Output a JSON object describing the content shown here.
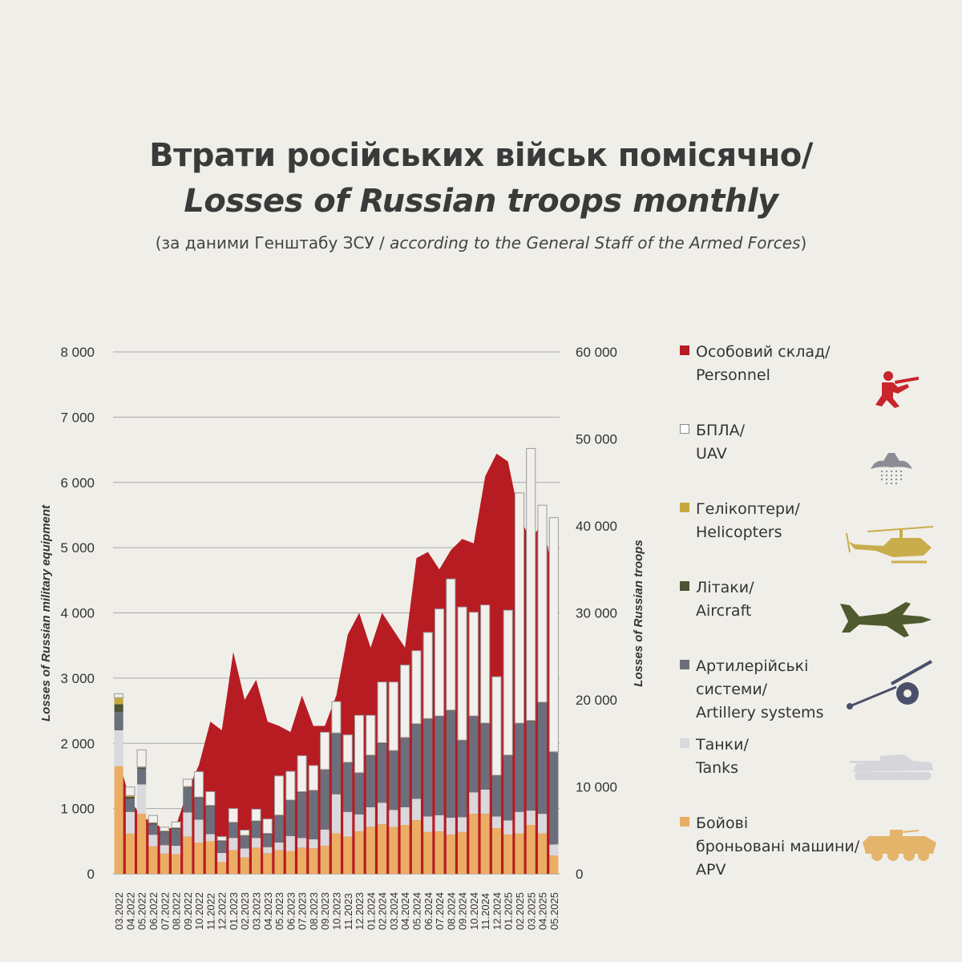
{
  "title": {
    "ua": "Втрати російських військ помісячно/",
    "en": "Losses of Russian troops monthly",
    "subtitle_ua": "(за даними Генштабу ЗСУ / ",
    "subtitle_en": "according to the General Staff of the Armed Forces",
    "subtitle_close": ")"
  },
  "colors": {
    "personnel": "#b71c23",
    "uav_fill": "#f2f0ec",
    "uav_stroke": "#9a9a9a",
    "helicopters": "#c3a93f",
    "aircraft": "#4c5433",
    "artillery": "#6b6f7c",
    "tanks": "#d9d8dc",
    "apv": "#eaad63",
    "grid": "#a8a8a8",
    "background": "#f0eee9"
  },
  "legend": [
    {
      "key": "personnel",
      "label_ua": "Особовий склад/",
      "label_en": "Personnel",
      "icon": "soldier-icon"
    },
    {
      "key": "uav",
      "label_ua": "БПЛА/",
      "label_en": "UAV",
      "icon": "drone-icon"
    },
    {
      "key": "helicopters",
      "label_ua": "Гелікоптери/",
      "label_en": "Helicopters",
      "icon": "helicopter-icon"
    },
    {
      "key": "aircraft",
      "label_ua": "Літаки/",
      "label_en": "Aircraft",
      "icon": "jet-icon"
    },
    {
      "key": "artillery",
      "label_ua": "Артилерійські",
      "label_ua2": "системи/",
      "label_en": "Artillery systems",
      "icon": "artillery-icon"
    },
    {
      "key": "tanks",
      "label_ua": "Танки/",
      "label_en": "Tanks",
      "icon": "tank-icon"
    },
    {
      "key": "apv",
      "label_ua": "Бойові",
      "label_ua2": "броньовані машини/",
      "label_en": "APV",
      "icon": "apc-icon"
    }
  ],
  "chart_data": {
    "type": "bar",
    "stacked": true,
    "ylabel_left": "Losses of Russian military equipment",
    "ylabel_right": "Losses of Russian troops",
    "ylim_left": [
      0,
      8000
    ],
    "ylim_right": [
      0,
      60000
    ],
    "yticks_left": [
      "0",
      "1 000",
      "2 000",
      "3 000",
      "4 000",
      "5 000",
      "6 000",
      "7 000",
      "8 000"
    ],
    "yticks_right": [
      "0",
      "10 000",
      "20 000",
      "30 000",
      "40 000",
      "50 000",
      "60 000"
    ],
    "grid": true,
    "legend_position": "right",
    "categories": [
      "03.2022",
      "04.2022",
      "05.2022",
      "06.2022",
      "07.2022",
      "08.2022",
      "09.2022",
      "10.2022",
      "11.2022",
      "12.2022",
      "01.2023",
      "02.2023",
      "03.2023",
      "04.2023",
      "05.2023",
      "06.2023",
      "07.2023",
      "08.2023",
      "09.2023",
      "10.2023",
      "11.2023",
      "12.2023",
      "01.2024",
      "02.2024",
      "03.2024",
      "04.2024",
      "05.2024",
      "06.2024",
      "07.2024",
      "08.2024",
      "09.2024",
      "10.2024",
      "11.2024",
      "12.2024",
      "01.2025",
      "02.2025",
      "03.2025",
      "04.2025",
      "05.2025"
    ],
    "series": [
      {
        "name": "Бойові броньовані машини/APV",
        "key": "apv",
        "axis": "left",
        "values": [
          1650,
          620,
          920,
          420,
          310,
          300,
          570,
          480,
          500,
          180,
          360,
          250,
          400,
          310,
          360,
          350,
          400,
          390,
          430,
          620,
          570,
          650,
          720,
          760,
          720,
          750,
          820,
          640,
          650,
          600,
          640,
          920,
          920,
          700,
          600,
          620,
          750,
          620,
          280
        ]
      },
      {
        "name": "Танки/Tanks",
        "key": "tanks",
        "axis": "left",
        "values": [
          550,
          330,
          450,
          180,
          130,
          130,
          370,
          350,
          110,
          140,
          190,
          140,
          150,
          100,
          120,
          230,
          150,
          140,
          250,
          600,
          380,
          260,
          300,
          330,
          260,
          270,
          330,
          240,
          250,
          260,
          230,
          330,
          370,
          180,
          220,
          330,
          220,
          300,
          170
        ]
      },
      {
        "name": "Артилерійські системи/Artillery systems",
        "key": "artillery",
        "axis": "left",
        "values": [
          280,
          200,
          240,
          160,
          200,
          260,
          380,
          330,
          430,
          180,
          230,
          190,
          250,
          200,
          410,
          540,
          700,
          740,
          910,
          930,
          750,
          630,
          790,
          910,
          900,
          1060,
          1140,
          1490,
          1510,
          1640,
          1170,
          1160,
          1010,
          620,
          990,
          1350,
          1370,
          1700,
          1410
        ]
      },
      {
        "name": "Літаки/Aircraft",
        "key": "aircraft",
        "axis": "left",
        "values": [
          120,
          30,
          20,
          15,
          10,
          10,
          10,
          10,
          5,
          5,
          5,
          5,
          5,
          5,
          5,
          5,
          5,
          5,
          5,
          5,
          5,
          5,
          5,
          5,
          5,
          5,
          5,
          5,
          5,
          5,
          5,
          5,
          5,
          5,
          5,
          5,
          5,
          5,
          5
        ]
      },
      {
        "name": "Гелікоптери/Helicopters",
        "key": "helicopters",
        "axis": "left",
        "values": [
          100,
          20,
          10,
          10,
          5,
          5,
          10,
          5,
          5,
          5,
          5,
          5,
          5,
          5,
          5,
          5,
          5,
          5,
          5,
          5,
          5,
          5,
          5,
          5,
          5,
          5,
          5,
          5,
          5,
          5,
          5,
          5,
          5,
          5,
          5,
          5,
          5,
          5,
          5
        ]
      },
      {
        "name": "БПЛА/UAV",
        "key": "uav",
        "axis": "left",
        "values": [
          60,
          130,
          260,
          110,
          60,
          90,
          110,
          390,
          210,
          60,
          210,
          80,
          180,
          220,
          600,
          440,
          550,
          380,
          570,
          480,
          420,
          880,
          610,
          930,
          1050,
          1110,
          1120,
          1320,
          1640,
          2010,
          2040,
          1590,
          1810,
          1510,
          2220,
          3530,
          4170,
          3020,
          3590
        ]
      },
      {
        "name": "Особовий склад/Personnel",
        "key": "personnel",
        "axis": "right",
        "type": "area",
        "values": [
          13000,
          8500,
          6500,
          6000,
          5000,
          5500,
          9500,
          12500,
          17500,
          16500,
          25500,
          20000,
          22300,
          17500,
          17000,
          16300,
          20500,
          17000,
          17000,
          20500,
          27500,
          30000,
          26000,
          30000,
          28000,
          26000,
          36300,
          37000,
          35000,
          37200,
          38500,
          38000,
          45700,
          48300,
          47400,
          41000,
          38300,
          40500,
          34300
        ]
      }
    ]
  }
}
